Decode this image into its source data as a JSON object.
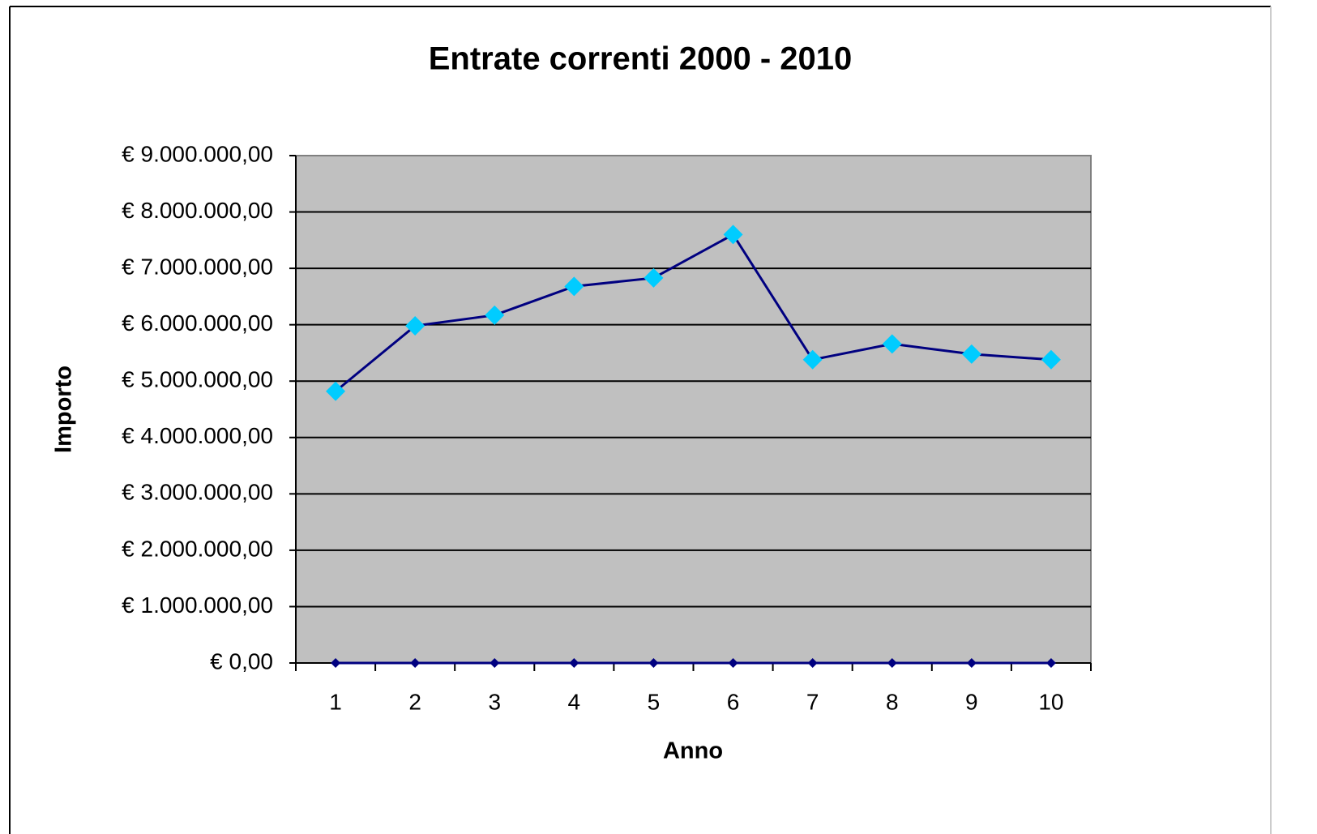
{
  "chart_data": {
    "type": "line",
    "title": "Entrate correnti 2000 - 2010",
    "x_label": "Anno",
    "y_label": "Importo",
    "categories": [
      "1",
      "2",
      "3",
      "4",
      "5",
      "6",
      "7",
      "8",
      "9",
      "10"
    ],
    "series": [
      {
        "color": "#000080",
        "marker_color": "#00ccff",
        "values": [
          4820000,
          5980000,
          6170000,
          6680000,
          6830000,
          7600000,
          5380000,
          5660000,
          5480000,
          5380000
        ]
      },
      {
        "color": "#000080",
        "marker_color": "#000080",
        "values": [
          0,
          0,
          0,
          0,
          0,
          0,
          0,
          0,
          0,
          0
        ]
      }
    ],
    "ylim": [
      0,
      9000000
    ],
    "yticks": [
      {
        "value": 0,
        "label": "€ 0,00"
      },
      {
        "value": 1000000,
        "label": "€ 1.000.000,00"
      },
      {
        "value": 2000000,
        "label": "€ 2.000.000,00"
      },
      {
        "value": 3000000,
        "label": "€ 3.000.000,00"
      },
      {
        "value": 4000000,
        "label": "€ 4.000.000,00"
      },
      {
        "value": 5000000,
        "label": "€ 5.000.000,00"
      },
      {
        "value": 6000000,
        "label": "€ 6.000.000,00"
      },
      {
        "value": 7000000,
        "label": "€ 7.000.000,00"
      },
      {
        "value": 8000000,
        "label": "€ 8.000.000,00"
      },
      {
        "value": 9000000,
        "label": "€ 9.000.000,00"
      }
    ],
    "grid": true
  }
}
